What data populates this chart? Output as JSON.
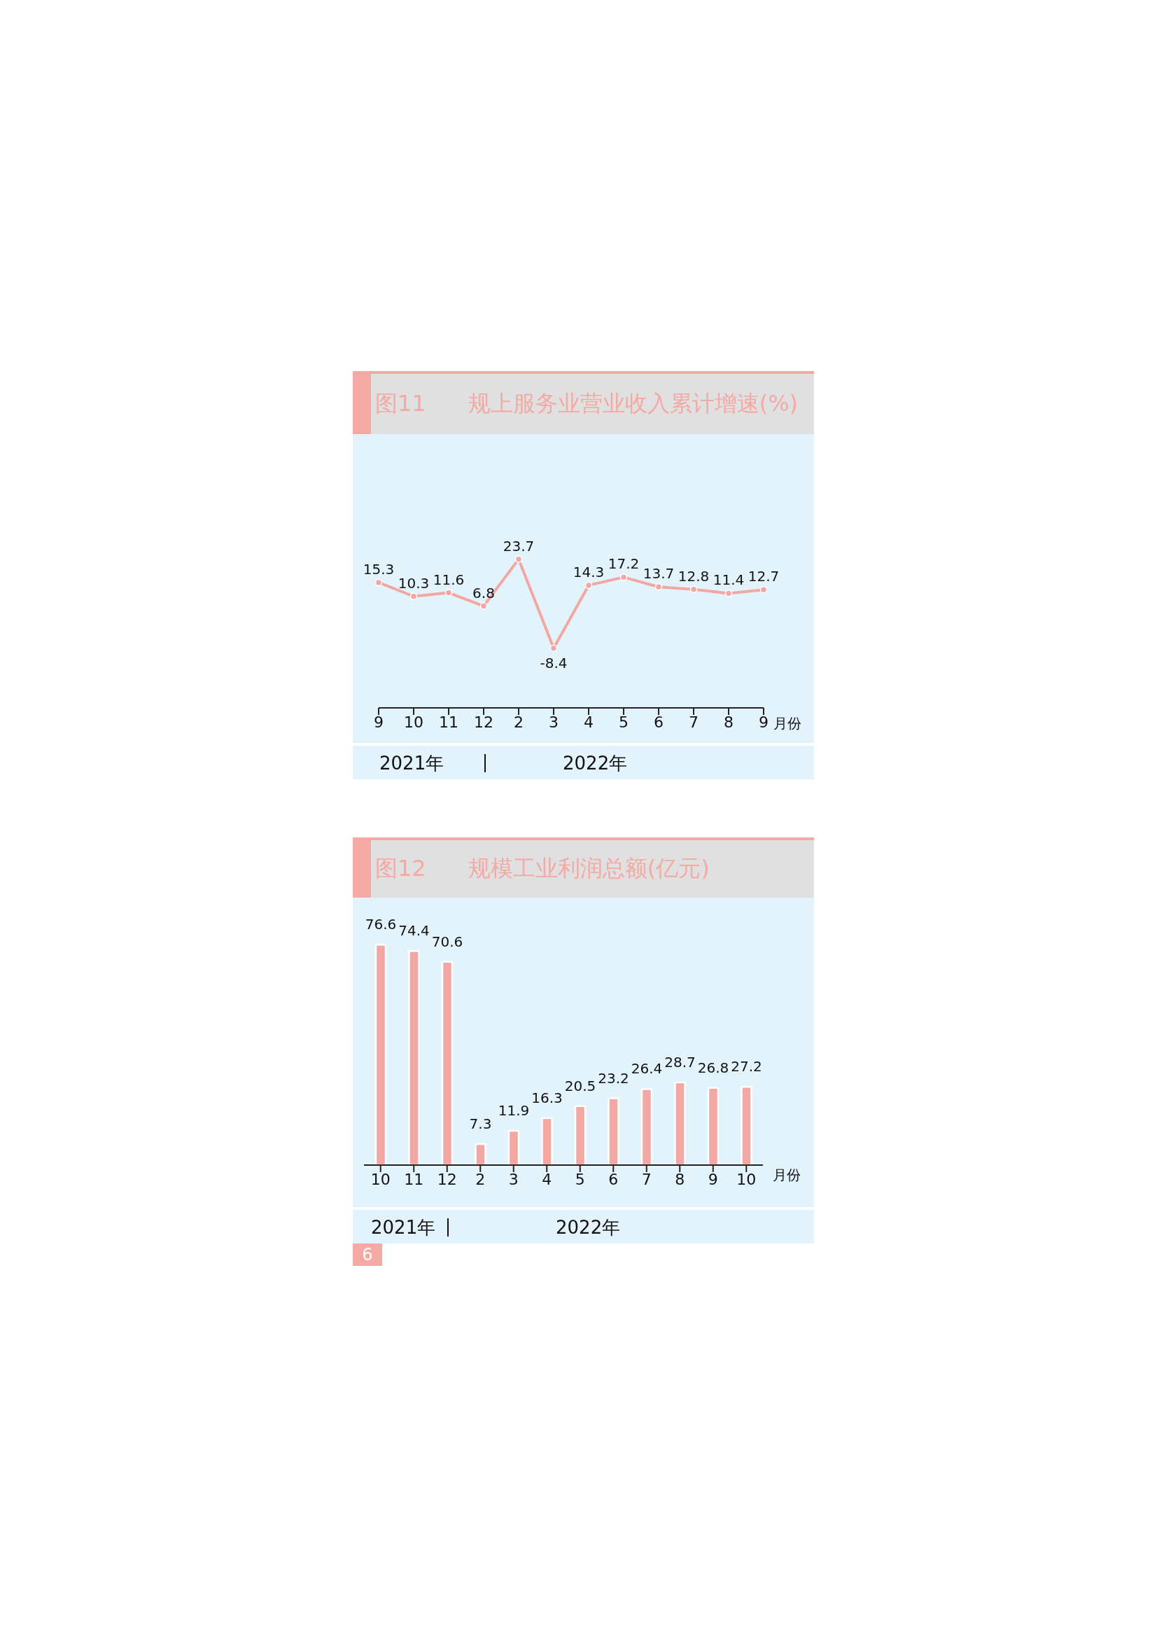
{
  "chart_data": [
    {
      "type": "line",
      "title": "图11",
      "subtitle": "规上服务业营业收入累计增速(%)",
      "xlabel": "月份",
      "annotations": [
        "2021年",
        "2022年"
      ],
      "categories": [
        "9",
        "10",
        "11",
        "12",
        "2",
        "3",
        "4",
        "5",
        "6",
        "7",
        "8",
        "9"
      ],
      "series": [
        {
          "color": "#f2a7a2",
          "values": [
            15.3,
            10.3,
            11.6,
            6.8,
            23.7,
            -8.4,
            14.3,
            17.2,
            13.7,
            12.8,
            11.4,
            12.7
          ]
        }
      ],
      "tick_labels": "x",
      "marker": "circle",
      "data_labels": true
    },
    {
      "type": "bar",
      "title": "图12",
      "subtitle": "规模工业利润总额(亿元)",
      "xlabel": "月份",
      "annotations": [
        "2021年",
        "2022年",
        "6"
      ],
      "categories": [
        "10",
        "11",
        "12",
        "2",
        "3",
        "4",
        "5",
        "6",
        "7",
        "8",
        "9",
        "10"
      ],
      "series": [
        {
          "color": "#f2a7a2",
          "values": [
            76.6,
            74.4,
            70.6,
            7.3,
            11.9,
            16.3,
            20.5,
            23.2,
            26.4,
            28.7,
            26.8,
            27.2
          ]
        }
      ],
      "tick_labels": "x",
      "data_labels": true
    }
  ]
}
